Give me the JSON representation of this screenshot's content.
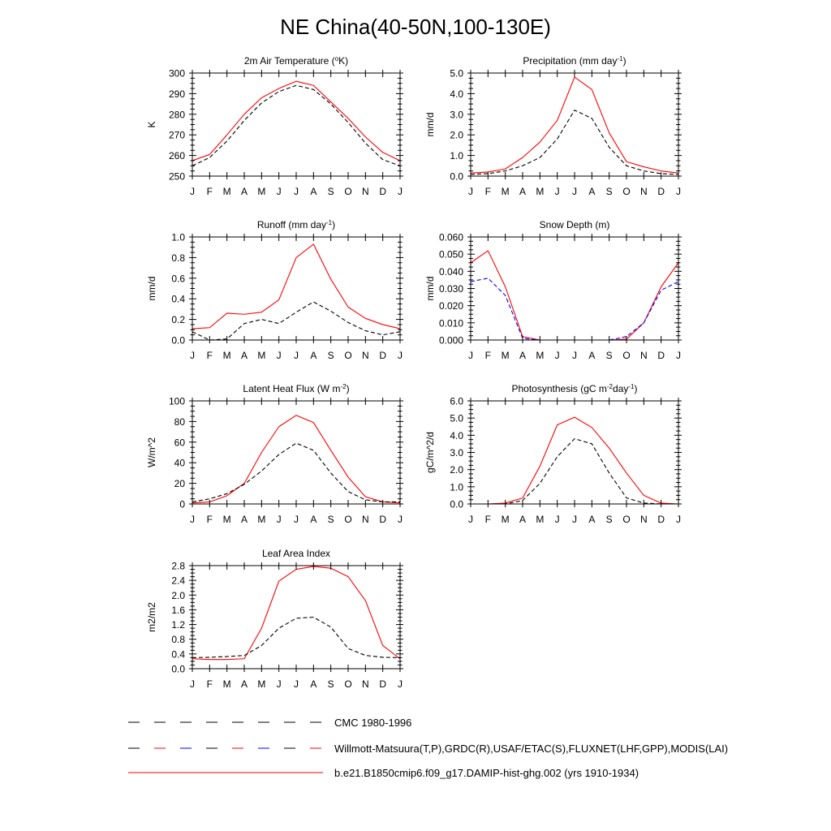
{
  "page": {
    "title": "NE China(40-50N,100-130E)"
  },
  "months": [
    "J",
    "F",
    "M",
    "A",
    "M",
    "J",
    "J",
    "A",
    "S",
    "O",
    "N",
    "D",
    "J"
  ],
  "legend": [
    {
      "label": "CMC 1980-1996",
      "style": "dashed",
      "colors": [
        "#000000"
      ]
    },
    {
      "label": "Willmott-Matsuura(T,P),GRDC(R),USAF/ETAC(S),FLUXNET(LHF,GPP),MODIS(LAI)",
      "style": "dashed",
      "colors": [
        "#000000",
        "#ff0000",
        "#0000ff"
      ]
    },
    {
      "label": "b.e21.B1850cmip6.f09_g17.DAMIP-hist-ghg.002 (yrs 1910-1934)",
      "style": "solid",
      "colors": [
        "#ff0000"
      ]
    }
  ],
  "chart_data": [
    {
      "type": "line",
      "title": "2m Air Temperature (",
      "title_sup": "o",
      "title_tail": "K)",
      "ylabel": "K",
      "ylim": [
        250,
        300
      ],
      "yticks": [
        250,
        260,
        270,
        280,
        290,
        300
      ],
      "ytick_labels": [
        "250",
        "260",
        "270",
        "280",
        "290",
        "300"
      ],
      "series": [
        {
          "style": "solid",
          "color": "#ff0000",
          "values": [
            257.5,
            260.5,
            270,
            280,
            288,
            292.5,
            296,
            294,
            286,
            278,
            269,
            261.5,
            257.5
          ]
        },
        {
          "style": "dashed",
          "color": "#000000",
          "values": [
            255,
            259,
            267,
            277,
            285.5,
            291,
            294,
            292,
            285,
            276,
            266,
            258,
            255
          ]
        }
      ]
    },
    {
      "type": "line",
      "title": "Precipitation (mm day",
      "title_sup": "-1",
      "title_tail": ")",
      "ylabel": "mm/d",
      "ylim": [
        0,
        5
      ],
      "yticks": [
        0,
        1,
        2,
        3,
        4,
        5
      ],
      "ytick_labels": [
        "0.0",
        "1.0",
        "2.0",
        "3.0",
        "4.0",
        "5.0"
      ],
      "series": [
        {
          "style": "solid",
          "color": "#ff0000",
          "values": [
            0.15,
            0.2,
            0.35,
            0.9,
            1.65,
            2.7,
            4.8,
            4.2,
            2.1,
            0.7,
            0.45,
            0.25,
            0.15
          ]
        },
        {
          "style": "dashed",
          "color": "#000000",
          "values": [
            0.08,
            0.12,
            0.25,
            0.5,
            0.9,
            1.8,
            3.2,
            2.8,
            1.4,
            0.5,
            0.25,
            0.12,
            0.08
          ]
        }
      ]
    },
    {
      "type": "line",
      "title": "Runoff (mm day",
      "title_sup": "-1",
      "title_tail": ")",
      "ylabel": "mm/d",
      "ylim": [
        0,
        1
      ],
      "yticks": [
        0,
        0.2,
        0.4,
        0.6,
        0.8,
        1.0
      ],
      "ytick_labels": [
        "0.0",
        "0.2",
        "0.4",
        "0.6",
        "0.8",
        "1.0"
      ],
      "series": [
        {
          "style": "solid",
          "color": "#ff0000",
          "values": [
            0.11,
            0.12,
            0.26,
            0.25,
            0.27,
            0.39,
            0.8,
            0.93,
            0.59,
            0.32,
            0.21,
            0.15,
            0.11
          ]
        },
        {
          "style": "dashed",
          "color": "#000000",
          "values": [
            0.08,
            0.0,
            0.01,
            0.16,
            0.2,
            0.16,
            0.27,
            0.37,
            0.28,
            0.17,
            0.09,
            0.05,
            0.08
          ]
        }
      ]
    },
    {
      "type": "line",
      "title": "Snow Depth (m)",
      "ylabel": "mm/d",
      "ylim": [
        0,
        0.06
      ],
      "yticks": [
        0,
        0.01,
        0.02,
        0.03,
        0.04,
        0.05,
        0.06
      ],
      "ytick_labels": [
        "0.000",
        "0.010",
        "0.020",
        "0.030",
        "0.040",
        "0.050",
        "0.060"
      ],
      "series": [
        {
          "style": "solid",
          "color": "#ff0000",
          "values": [
            0.045,
            0.052,
            0.031,
            0.002,
            0.0,
            0.0,
            0.0,
            0.0,
            0.0,
            0.0005,
            0.01,
            0.031,
            0.045
          ]
        },
        {
          "style": "dashed",
          "color": "#0000ff",
          "values": [
            0.034,
            0.036,
            0.026,
            0.001,
            0.0,
            0.0,
            0.0,
            0.0,
            0.0,
            0.002,
            0.01,
            0.029,
            0.034
          ]
        },
        {
          "style": "dashed",
          "color": "#000000",
          "values": [
            0,
            0,
            0,
            0,
            0,
            0,
            0,
            0,
            0,
            0,
            0,
            0,
            0
          ]
        }
      ]
    },
    {
      "type": "line",
      "title": "Latent Heat Flux (W m",
      "title_sup": "-2",
      "title_tail": ")",
      "ylabel": "W/m^2",
      "ylim": [
        0,
        100
      ],
      "yticks": [
        0,
        20,
        40,
        60,
        80,
        100
      ],
      "ytick_labels": [
        "0",
        "20",
        "40",
        "60",
        "80",
        "100"
      ],
      "series": [
        {
          "style": "solid",
          "color": "#ff0000",
          "values": [
            1,
            2,
            8,
            20,
            50,
            75,
            86,
            79,
            52,
            26,
            7,
            2,
            1
          ]
        },
        {
          "style": "dashed",
          "color": "#000000",
          "values": [
            2,
            5,
            10,
            19,
            32,
            48,
            59,
            52,
            30,
            12,
            4,
            2,
            2
          ]
        }
      ]
    },
    {
      "type": "line",
      "title": "Photosynthesis (gC m",
      "title_sup": "-2",
      "title_mid": "day",
      "title_sup2": "-1",
      "title_tail": ")",
      "ylabel": "gC/m^2/d",
      "ylim": [
        0,
        6
      ],
      "yticks": [
        0,
        1,
        2,
        3,
        4,
        5,
        6
      ],
      "ytick_labels": [
        "0.0",
        "1.0",
        "2.0",
        "3.0",
        "4.0",
        "5.0",
        "6.0"
      ],
      "series": [
        {
          "style": "solid",
          "color": "#ff0000",
          "values": [
            0.0,
            0.0,
            0.05,
            0.35,
            2.2,
            4.6,
            5.05,
            4.45,
            3.25,
            1.8,
            0.5,
            0.05,
            0.0
          ]
        },
        {
          "style": "dashed",
          "color": "#000000",
          "values": [
            0.0,
            0.0,
            0.0,
            0.2,
            1.2,
            2.75,
            3.8,
            3.5,
            1.8,
            0.35,
            0.05,
            0.0,
            0.0
          ]
        }
      ]
    },
    {
      "type": "line",
      "title": "Leaf Area Index",
      "ylabel": "m2/m2",
      "ylim": [
        0,
        2.8
      ],
      "yticks": [
        0,
        0.4,
        0.8,
        1.2,
        1.6,
        2.0,
        2.4,
        2.8
      ],
      "ytick_labels": [
        "0.0",
        "0.4",
        "0.8",
        "1.2",
        "1.6",
        "2.0",
        "2.4",
        "2.8"
      ],
      "series": [
        {
          "style": "solid",
          "color": "#ff0000",
          "values": [
            0.27,
            0.25,
            0.25,
            0.27,
            1.1,
            2.38,
            2.7,
            2.78,
            2.73,
            2.5,
            1.85,
            0.63,
            0.27
          ]
        },
        {
          "style": "dashed",
          "color": "#000000",
          "values": [
            0.3,
            0.31,
            0.33,
            0.36,
            0.63,
            1.1,
            1.37,
            1.4,
            1.13,
            0.55,
            0.36,
            0.31,
            0.3
          ]
        }
      ]
    }
  ]
}
